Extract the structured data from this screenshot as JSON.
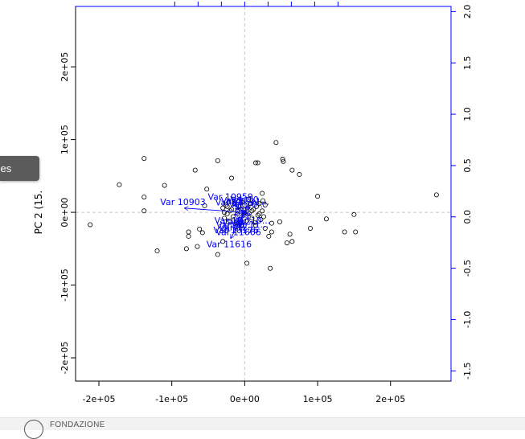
{
  "chart_data": {
    "type": "scatter",
    "subtype": "biplot",
    "title": "",
    "xlabel": "",
    "ylabel": "PC 2 (15.",
    "x_ticks": [
      {
        "value": -200000,
        "label": "-2e+05"
      },
      {
        "value": -100000,
        "label": "-1e+05"
      },
      {
        "value": 0,
        "label": "0e+00"
      },
      {
        "value": 100000,
        "label": "1e+05"
      },
      {
        "value": 200000,
        "label": "2e+05"
      }
    ],
    "y_ticks": [
      {
        "value": -200000,
        "label": "-2e+05"
      },
      {
        "value": -100000,
        "label": "-1e+05"
      },
      {
        "value": 0,
        "label": "0e+00"
      },
      {
        "value": 100000,
        "label": "1e+05"
      },
      {
        "value": 200000,
        "label": "2e+05"
      }
    ],
    "right_ticks": [
      {
        "value": -1.5,
        "label": "-1.5"
      },
      {
        "value": -1.0,
        "label": "-1.0"
      },
      {
        "value": -0.5,
        "label": "-0.5"
      },
      {
        "value": 0.0,
        "label": "0.0"
      },
      {
        "value": 0.5,
        "label": "0.5"
      },
      {
        "value": 1.0,
        "label": "1.0"
      },
      {
        "value": 1.5,
        "label": "1.5"
      },
      {
        "value": 2.0,
        "label": "2.0"
      }
    ],
    "xlim": [
      -232000,
      283000
    ],
    "ylim": [
      -232000,
      283000
    ],
    "right_lim": [
      -1.6,
      2.05
    ],
    "reference_lines": {
      "x": 0,
      "y": 0,
      "style": "dashed"
    },
    "point_color": "#000000",
    "loading_color": "#0000ff",
    "points": [
      [
        -212000,
        -17000
      ],
      [
        -172000,
        38000
      ],
      [
        -138000,
        74000
      ],
      [
        -138000,
        21000
      ],
      [
        -138000,
        2000
      ],
      [
        -120000,
        -53000
      ],
      [
        -110000,
        37000
      ],
      [
        -80000,
        -50000
      ],
      [
        -77000,
        -27000
      ],
      [
        -77000,
        -33000
      ],
      [
        -68000,
        58000
      ],
      [
        -65000,
        -47000
      ],
      [
        -62000,
        -23000
      ],
      [
        -58000,
        -28000
      ],
      [
        -55000,
        9000
      ],
      [
        -52000,
        32000
      ],
      [
        -37000,
        71000
      ],
      [
        -37000,
        -58000
      ],
      [
        -30000,
        -40000
      ],
      [
        -25000,
        -25000
      ],
      [
        -18000,
        47000
      ],
      [
        -12000,
        -20000
      ],
      [
        -5000,
        5000
      ],
      [
        3000,
        -70000
      ],
      [
        15000,
        68000
      ],
      [
        18000,
        68000
      ],
      [
        24000,
        26000
      ],
      [
        28000,
        -22000
      ],
      [
        33000,
        -33000
      ],
      [
        35000,
        -77000
      ],
      [
        37000,
        -27000
      ],
      [
        37000,
        -15000
      ],
      [
        43000,
        96000
      ],
      [
        48000,
        -13000
      ],
      [
        52000,
        73000
      ],
      [
        53000,
        70000
      ],
      [
        58000,
        -42000
      ],
      [
        62000,
        -30000
      ],
      [
        65000,
        58000
      ],
      [
        65000,
        -40000
      ],
      [
        75000,
        52000
      ],
      [
        90000,
        -22000
      ],
      [
        100000,
        22000
      ],
      [
        112000,
        -9000
      ],
      [
        137000,
        -27000
      ],
      [
        150000,
        -3000
      ],
      [
        152000,
        -27000
      ],
      [
        263000,
        24000
      ],
      [
        -30000,
        6000
      ],
      [
        -28000,
        -8000
      ],
      [
        -26000,
        10000
      ],
      [
        -24000,
        -2000
      ],
      [
        -22000,
        14000
      ],
      [
        -20000,
        -12000
      ],
      [
        -18000,
        4000
      ],
      [
        -16000,
        -6000
      ],
      [
        -14000,
        12000
      ],
      [
        -12000,
        -14000
      ],
      [
        -10000,
        2000
      ],
      [
        -8000,
        8000
      ],
      [
        -6000,
        -10000
      ],
      [
        -4000,
        14000
      ],
      [
        -2000,
        -4000
      ],
      [
        0,
        10000
      ],
      [
        2000,
        -12000
      ],
      [
        4000,
        6000
      ],
      [
        6000,
        -2000
      ],
      [
        8000,
        12000
      ],
      [
        10000,
        -8000
      ],
      [
        12000,
        4000
      ],
      [
        14000,
        -14000
      ],
      [
        16000,
        8000
      ],
      [
        18000,
        -4000
      ],
      [
        20000,
        12000
      ],
      [
        22000,
        -10000
      ],
      [
        24000,
        2000
      ],
      [
        26000,
        -6000
      ],
      [
        28000,
        10000
      ],
      [
        -25000,
        -18000
      ],
      [
        -15000,
        18000
      ],
      [
        -5000,
        -18000
      ],
      [
        5000,
        18000
      ],
      [
        15000,
        -18000
      ],
      [
        25000,
        16000
      ],
      [
        -28000,
        0
      ],
      [
        -20000,
        2000
      ],
      [
        -10000,
        -2000
      ],
      [
        0,
        0
      ],
      [
        10000,
        2000
      ],
      [
        20000,
        -2000
      ],
      [
        -24000,
        8000
      ],
      [
        12000,
        14000
      ]
    ],
    "loadings": [
      {
        "label": "Var 10903",
        "x": -1.29,
        "y": 0.09
      },
      {
        "label": "Var 10959",
        "x": -0.27,
        "y": 0.2
      },
      {
        "label": "Var 11616",
        "x": -0.3,
        "y": -0.56
      },
      {
        "label": "Var 11666",
        "x": -0.1,
        "y": -0.3
      },
      {
        "label": "Var 10176",
        "x": -0.15,
        "y": -0.26
      },
      {
        "label": "Var 10...",
        "x": -0.18,
        "y": -0.15
      },
      {
        "label": "Var 12...",
        "x": -0.12,
        "y": -0.2
      },
      {
        "label": "Var 10...",
        "x": -0.22,
        "y": -0.05
      },
      {
        "label": "Var 11...",
        "x": -0.2,
        "y": 0.08
      },
      {
        "label": "Var 12...",
        "x": -0.08,
        "y": 0.12
      },
      {
        "label": "Var 10...",
        "x": 0.05,
        "y": 0.14
      },
      {
        "label": "Var 11...",
        "x": 0.1,
        "y": 0.1
      },
      {
        "label": "Var 10...",
        "x": 0.12,
        "y": -0.05
      },
      {
        "label": "Var 11...",
        "x": 0.08,
        "y": -0.14
      },
      {
        "label": "Var 12...",
        "x": -0.05,
        "y": -0.08
      },
      {
        "label": "Var 10...",
        "x": 0.02,
        "y": 0.04
      }
    ],
    "grid": false,
    "legend": "none"
  },
  "ui": {
    "side_tab_label": "ces",
    "footer_text": "FONDAZIONE"
  }
}
